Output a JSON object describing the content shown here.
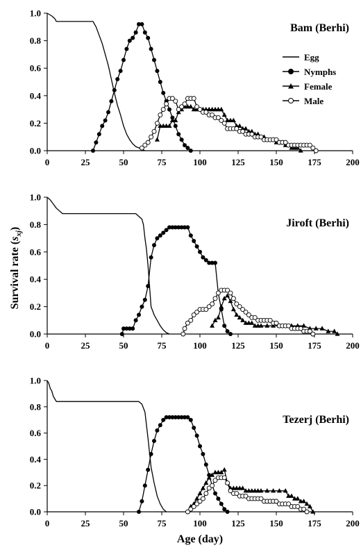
{
  "colors": {
    "line": "#000000",
    "hollow_fill": "#ffffff"
  },
  "ylabel_main": "Survival rate (",
  "ylabel_sym": "s",
  "ylabel_sub": "xj",
  "ylabel_close": ")",
  "xlabel": "Age (day)",
  "legend_labels": [
    "Egg",
    "Nymphs",
    "Female",
    "Male"
  ],
  "chart_data": [
    {
      "type": "line",
      "title": "Bam (Berhi)",
      "xlim": [
        0,
        200
      ],
      "ylim": [
        0,
        1
      ],
      "legend": {
        "placement": "top-right",
        "entries": [
          "Egg",
          "Nymphs",
          "Female",
          "Male"
        ]
      },
      "x_ticks": [
        "0",
        "25",
        "50",
        "75",
        "100",
        "125",
        "150",
        "175",
        "200"
      ],
      "y_ticks": [
        "0.0",
        "0.2",
        "0.4",
        "0.6",
        "0.8",
        "1.0"
      ],
      "series": [
        {
          "name": "Egg",
          "marker": "none",
          "x": [
            0,
            3,
            5,
            6,
            8,
            10,
            30,
            32,
            34,
            36,
            38,
            40,
            42,
            44,
            46,
            48,
            50,
            52,
            54,
            56,
            58,
            60,
            62,
            64
          ],
          "y": [
            1.0,
            0.98,
            0.96,
            0.94,
            0.94,
            0.94,
            0.94,
            0.9,
            0.84,
            0.78,
            0.7,
            0.62,
            0.52,
            0.42,
            0.33,
            0.26,
            0.18,
            0.12,
            0.08,
            0.05,
            0.03,
            0.02,
            0.01,
            0.0
          ]
        },
        {
          "name": "Nymphs",
          "marker": "filled-circle",
          "x": [
            30,
            32,
            34,
            36,
            38,
            40,
            42,
            44,
            46,
            48,
            50,
            52,
            54,
            56,
            58,
            60,
            62,
            64,
            66,
            68,
            70,
            72,
            74,
            76,
            78,
            80,
            82,
            84,
            86,
            88,
            90,
            92,
            94
          ],
          "y": [
            0.0,
            0.06,
            0.12,
            0.18,
            0.22,
            0.28,
            0.36,
            0.44,
            0.52,
            0.58,
            0.66,
            0.74,
            0.8,
            0.82,
            0.86,
            0.92,
            0.92,
            0.86,
            0.82,
            0.74,
            0.66,
            0.58,
            0.5,
            0.42,
            0.36,
            0.3,
            0.24,
            0.18,
            0.12,
            0.08,
            0.04,
            0.02,
            0.0
          ]
        },
        {
          "name": "Female",
          "marker": "filled-triangle",
          "x": [
            72,
            74,
            76,
            78,
            80,
            82,
            84,
            86,
            88,
            90,
            92,
            94,
            96,
            98,
            100,
            102,
            104,
            106,
            108,
            110,
            112,
            114,
            116,
            118,
            120,
            122,
            124,
            126,
            128,
            130,
            132,
            134,
            136,
            138,
            140,
            142,
            144,
            146,
            148,
            150,
            152,
            154,
            156,
            158,
            160,
            162,
            164,
            166
          ],
          "y": [
            0.08,
            0.18,
            0.18,
            0.18,
            0.18,
            0.22,
            0.22,
            0.28,
            0.3,
            0.32,
            0.32,
            0.32,
            0.3,
            0.3,
            0.3,
            0.3,
            0.3,
            0.3,
            0.3,
            0.3,
            0.3,
            0.3,
            0.26,
            0.22,
            0.22,
            0.22,
            0.18,
            0.18,
            0.16,
            0.16,
            0.14,
            0.14,
            0.12,
            0.12,
            0.1,
            0.1,
            0.08,
            0.08,
            0.08,
            0.06,
            0.06,
            0.06,
            0.04,
            0.04,
            0.02,
            0.02,
            0.02,
            0.0
          ]
        },
        {
          "name": "Male",
          "marker": "hollow-circle",
          "x": [
            62,
            64,
            66,
            68,
            70,
            72,
            74,
            76,
            78,
            80,
            82,
            84,
            86,
            88,
            90,
            92,
            94,
            96,
            98,
            100,
            102,
            104,
            106,
            108,
            110,
            112,
            114,
            116,
            118,
            120,
            122,
            124,
            126,
            128,
            130,
            132,
            134,
            136,
            138,
            140,
            142,
            144,
            146,
            148,
            150,
            152,
            154,
            156,
            158,
            160,
            162,
            164,
            166,
            168,
            170,
            172,
            174,
            176
          ],
          "y": [
            0.02,
            0.04,
            0.06,
            0.1,
            0.14,
            0.2,
            0.26,
            0.3,
            0.34,
            0.38,
            0.38,
            0.36,
            0.3,
            0.32,
            0.34,
            0.38,
            0.38,
            0.38,
            0.32,
            0.3,
            0.28,
            0.28,
            0.26,
            0.26,
            0.24,
            0.24,
            0.22,
            0.2,
            0.16,
            0.16,
            0.16,
            0.16,
            0.14,
            0.14,
            0.12,
            0.12,
            0.12,
            0.1,
            0.1,
            0.1,
            0.08,
            0.08,
            0.08,
            0.08,
            0.08,
            0.06,
            0.06,
            0.06,
            0.04,
            0.04,
            0.04,
            0.04,
            0.04,
            0.04,
            0.04,
            0.04,
            0.02,
            0.0
          ]
        }
      ]
    },
    {
      "type": "line",
      "title": "Jiroft (Berhi)",
      "xlim": [
        0,
        200
      ],
      "ylim": [
        0,
        1
      ],
      "x_ticks": [
        "0",
        "25",
        "50",
        "75",
        "100",
        "125",
        "150",
        "175",
        "200"
      ],
      "y_ticks": [
        "0.0",
        "0.2",
        "0.4",
        "0.6",
        "0.8",
        "1.0"
      ],
      "series": [
        {
          "name": "Egg",
          "marker": "none",
          "x": [
            0,
            2,
            4,
            6,
            8,
            10,
            58,
            60,
            62,
            63,
            64,
            65,
            66,
            67,
            68,
            70,
            72,
            74,
            76,
            78,
            80
          ],
          "y": [
            1.0,
            0.98,
            0.95,
            0.92,
            0.9,
            0.88,
            0.88,
            0.86,
            0.84,
            0.8,
            0.7,
            0.62,
            0.5,
            0.35,
            0.2,
            0.14,
            0.1,
            0.06,
            0.03,
            0.01,
            0.0
          ]
        },
        {
          "name": "Nymphs",
          "marker": "filled-circle",
          "x": [
            49,
            50,
            52,
            54,
            56,
            58,
            60,
            62,
            64,
            66,
            68,
            70,
            72,
            74,
            76,
            78,
            80,
            82,
            84,
            86,
            88,
            90,
            92,
            94,
            96,
            98,
            100,
            102,
            104,
            106,
            108,
            110,
            112,
            114,
            116,
            118,
            120
          ],
          "y": [
            0.0,
            0.04,
            0.04,
            0.04,
            0.04,
            0.1,
            0.14,
            0.2,
            0.25,
            0.35,
            0.56,
            0.65,
            0.7,
            0.72,
            0.74,
            0.76,
            0.78,
            0.78,
            0.78,
            0.78,
            0.78,
            0.78,
            0.78,
            0.72,
            0.68,
            0.64,
            0.6,
            0.56,
            0.54,
            0.52,
            0.52,
            0.52,
            0.3,
            0.18,
            0.06,
            0.02,
            0.0
          ]
        },
        {
          "name": "Female",
          "marker": "filled-triangle",
          "x": [
            108,
            110,
            112,
            114,
            116,
            118,
            120,
            122,
            124,
            126,
            128,
            130,
            132,
            134,
            136,
            138,
            140,
            144,
            148,
            152,
            156,
            160,
            164,
            168,
            172,
            176,
            180,
            184,
            188,
            190
          ],
          "y": [
            0.06,
            0.1,
            0.12,
            0.2,
            0.26,
            0.28,
            0.24,
            0.18,
            0.14,
            0.12,
            0.1,
            0.08,
            0.08,
            0.08,
            0.06,
            0.06,
            0.06,
            0.06,
            0.06,
            0.06,
            0.06,
            0.06,
            0.06,
            0.06,
            0.04,
            0.04,
            0.04,
            0.02,
            0.02,
            0.0
          ]
        },
        {
          "name": "Male",
          "marker": "hollow-circle",
          "x": [
            89,
            90,
            92,
            94,
            96,
            98,
            100,
            102,
            104,
            106,
            108,
            110,
            112,
            114,
            116,
            118,
            120,
            122,
            124,
            126,
            128,
            130,
            132,
            134,
            136,
            138,
            140,
            142,
            144,
            146,
            148,
            150,
            152,
            154,
            156,
            158,
            160,
            162,
            164,
            166,
            168,
            170,
            172,
            174
          ],
          "y": [
            0.0,
            0.04,
            0.08,
            0.1,
            0.14,
            0.16,
            0.18,
            0.18,
            0.18,
            0.2,
            0.22,
            0.26,
            0.3,
            0.32,
            0.32,
            0.32,
            0.3,
            0.26,
            0.22,
            0.2,
            0.18,
            0.16,
            0.14,
            0.12,
            0.12,
            0.1,
            0.1,
            0.1,
            0.1,
            0.1,
            0.08,
            0.08,
            0.06,
            0.06,
            0.06,
            0.06,
            0.04,
            0.04,
            0.04,
            0.04,
            0.02,
            0.02,
            0.02,
            0.0
          ]
        }
      ]
    },
    {
      "type": "line",
      "title": "Tezerj (Berhi)",
      "xlim": [
        0,
        200
      ],
      "ylim": [
        0,
        1
      ],
      "x_ticks": [
        "0",
        "25",
        "50",
        "75",
        "100",
        "125",
        "150",
        "175",
        "200"
      ],
      "y_ticks": [
        "0.0",
        "0.2",
        "0.4",
        "0.6",
        "0.8",
        "1.0"
      ],
      "series": [
        {
          "name": "Egg",
          "marker": "none",
          "x": [
            0,
            1,
            2,
            3,
            4,
            5,
            6,
            60,
            62,
            64,
            66,
            68,
            70,
            72,
            74,
            76,
            78
          ],
          "y": [
            1.0,
            0.98,
            0.94,
            0.92,
            0.88,
            0.86,
            0.84,
            0.84,
            0.82,
            0.76,
            0.56,
            0.34,
            0.22,
            0.12,
            0.06,
            0.02,
            0.0
          ]
        },
        {
          "name": "Nymphs",
          "marker": "filled-circle",
          "x": [
            60,
            62,
            64,
            66,
            68,
            70,
            72,
            74,
            76,
            78,
            80,
            82,
            84,
            86,
            88,
            90,
            92,
            94,
            96,
            98,
            100,
            102,
            104,
            106,
            108,
            110,
            112,
            114,
            116,
            118
          ],
          "y": [
            0.0,
            0.08,
            0.2,
            0.32,
            0.44,
            0.54,
            0.62,
            0.66,
            0.7,
            0.72,
            0.72,
            0.72,
            0.72,
            0.72,
            0.72,
            0.72,
            0.72,
            0.7,
            0.64,
            0.58,
            0.5,
            0.44,
            0.36,
            0.28,
            0.2,
            0.14,
            0.1,
            0.06,
            0.02,
            0.0
          ]
        },
        {
          "name": "Female",
          "marker": "filled-triangle",
          "x": [
            94,
            96,
            98,
            100,
            102,
            104,
            106,
            108,
            110,
            112,
            114,
            116,
            118,
            120,
            122,
            124,
            126,
            128,
            130,
            132,
            134,
            136,
            138,
            140,
            144,
            148,
            152,
            156,
            158,
            160,
            162,
            164,
            166,
            168,
            170,
            172,
            174
          ],
          "y": [
            0.04,
            0.06,
            0.1,
            0.14,
            0.18,
            0.22,
            0.26,
            0.28,
            0.3,
            0.3,
            0.3,
            0.32,
            0.22,
            0.18,
            0.18,
            0.18,
            0.18,
            0.18,
            0.16,
            0.16,
            0.16,
            0.16,
            0.16,
            0.16,
            0.16,
            0.16,
            0.16,
            0.16,
            0.12,
            0.12,
            0.1,
            0.1,
            0.08,
            0.08,
            0.06,
            0.04,
            0.0
          ]
        },
        {
          "name": "Male",
          "marker": "hollow-circle",
          "x": [
            92,
            94,
            96,
            98,
            100,
            102,
            104,
            106,
            108,
            110,
            112,
            114,
            116,
            118,
            120,
            122,
            124,
            126,
            128,
            130,
            132,
            134,
            136,
            138,
            140,
            142,
            144,
            146,
            148,
            150,
            152,
            154,
            156,
            158,
            160,
            162,
            164,
            166,
            168,
            170
          ],
          "y": [
            0.0,
            0.02,
            0.04,
            0.06,
            0.08,
            0.1,
            0.14,
            0.18,
            0.2,
            0.24,
            0.26,
            0.26,
            0.26,
            0.22,
            0.16,
            0.14,
            0.14,
            0.12,
            0.12,
            0.12,
            0.1,
            0.1,
            0.1,
            0.1,
            0.1,
            0.08,
            0.08,
            0.08,
            0.08,
            0.08,
            0.06,
            0.06,
            0.06,
            0.06,
            0.04,
            0.04,
            0.04,
            0.02,
            0.02,
            0.0
          ]
        }
      ]
    }
  ]
}
